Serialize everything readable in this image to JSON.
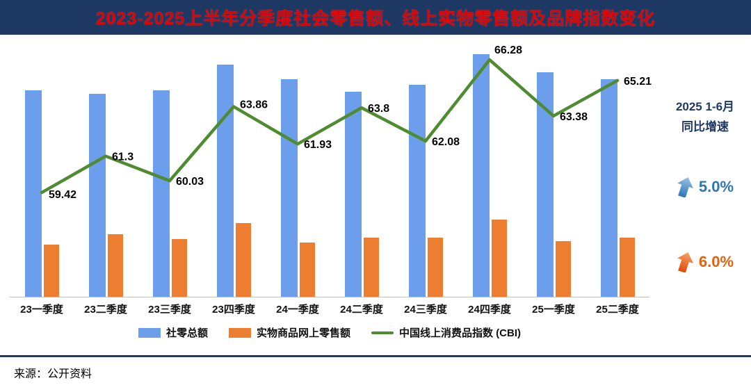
{
  "title": "2023-2025上半年分季度社会零售额、线上实物零售额及品牌指数变化",
  "source_note": "来源：公开资料",
  "side_panel": {
    "period": "2025 1-6月",
    "label": "同比增速",
    "retail_growth": "5.0%",
    "online_growth": "6.0%"
  },
  "colors": {
    "banner": "#1E3864",
    "title_text": "#E50000",
    "retail_bar_blue": "#6D9EEB",
    "online_bar_orange": "#ED7D31",
    "cbi_line_green": "#4E8C2F",
    "growth_blue": "#2E75B6",
    "growth_orange": "#E8610C",
    "divider": "#1F3864"
  },
  "chart_data": {
    "type": "bar+line",
    "title": "2023-2025上半年分季度社会零售额、线上实物零售额及品牌指数变化",
    "categories": [
      "23一季度",
      "23二季度",
      "23三季度",
      "23四季度",
      "24一季度",
      "24二季度",
      "24三季度",
      "24四季度",
      "25一季度",
      "25二季度"
    ],
    "series": [
      {
        "name": "社零总额",
        "type": "bar",
        "color": "#6D9EEB",
        "values_estimated": true,
        "values": [
          11.5,
          11.3,
          11.5,
          12.9,
          12.1,
          11.4,
          11.8,
          13.5,
          12.5,
          12.1
        ]
      },
      {
        "name": "实物商品网上零售额",
        "type": "bar",
        "color": "#ED7D31",
        "values_estimated": true,
        "values": [
          2.9,
          3.5,
          3.2,
          4.1,
          3.0,
          3.3,
          3.3,
          4.3,
          3.1,
          3.3
        ]
      },
      {
        "name": "中国线上消费品指数 (CBI)",
        "type": "line",
        "color": "#4E8C2F",
        "values_estimated": false,
        "values": [
          59.42,
          61.3,
          60.03,
          63.86,
          61.93,
          63.8,
          62.08,
          66.28,
          63.38,
          65.21
        ]
      }
    ],
    "bar_axis_max": 14,
    "line_axis_range": [
      54,
      67
    ],
    "grid": false,
    "y_axis_shown": false,
    "legend_position": "bottom",
    "xlabel": "",
    "ylabel": ""
  }
}
